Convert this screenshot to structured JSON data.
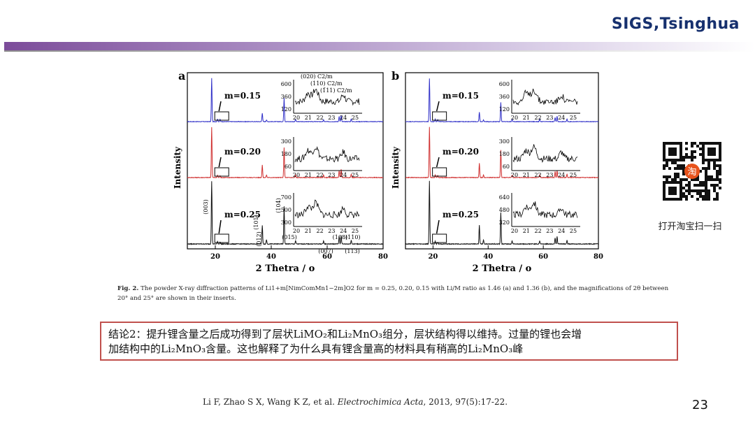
{
  "header": {
    "title": "SIGS,Tsinghua"
  },
  "colors": {
    "accent_purple": "#7c4c9a",
    "series_m015": "#3030c8",
    "series_m020": "#d03030",
    "series_m025": "#111111",
    "box_border": "#c0504d",
    "title_navy": "#16306e"
  },
  "chart_data": [
    {
      "panel": "a",
      "type": "line",
      "xlabel": "2 Thetra / o",
      "ylabel": "Intensity",
      "xlim": [
        10,
        80
      ],
      "xticks": [
        "20",
        "40",
        "60",
        "80"
      ],
      "x_units": "degrees 2θ",
      "grid": false,
      "series": [
        {
          "name": "m=0.15",
          "color": "#3030c8",
          "peaks": [
            [
              18.7,
              1.0
            ],
            [
              20.8,
              0.06
            ],
            [
              21.7,
              0.05
            ],
            [
              36.8,
              0.2
            ],
            [
              38.3,
              0.04
            ],
            [
              44.6,
              0.55
            ],
            [
              48.7,
              0.05
            ],
            [
              58.7,
              0.04
            ],
            [
              64.3,
              0.12
            ],
            [
              65.0,
              0.14
            ],
            [
              68.6,
              0.06
            ]
          ]
        },
        {
          "name": "m=0.20",
          "color": "#d03030",
          "peaks": [
            [
              18.7,
              1.0
            ],
            [
              20.8,
              0.05
            ],
            [
              21.7,
              0.04
            ],
            [
              36.8,
              0.25
            ],
            [
              38.3,
              0.05
            ],
            [
              44.6,
              0.6
            ],
            [
              48.7,
              0.05
            ],
            [
              58.7,
              0.05
            ],
            [
              64.3,
              0.14
            ],
            [
              65.0,
              0.16
            ],
            [
              68.6,
              0.07
            ]
          ]
        },
        {
          "name": "m=0.25",
          "color": "#111111",
          "peaks": [
            [
              18.7,
              1.0
            ],
            [
              20.8,
              0.04
            ],
            [
              21.7,
              0.03
            ],
            [
              36.8,
              0.3
            ],
            [
              38.3,
              0.07
            ],
            [
              44.6,
              0.6
            ],
            [
              48.7,
              0.05
            ],
            [
              58.7,
              0.05
            ],
            [
              64.3,
              0.12
            ],
            [
              65.0,
              0.14
            ],
            [
              68.6,
              0.06
            ]
          ]
        }
      ],
      "peak_labels": [
        "(003)",
        "(101)",
        "(012)",
        "(104)",
        "(015)",
        "(007)",
        "(108)",
        "(110)",
        "(113)"
      ],
      "insets": [
        {
          "for": "m=0.15",
          "xticks": [
            "20",
            "21",
            "22",
            "23",
            "24",
            "25"
          ],
          "yticks": [
            "120",
            "360",
            "600"
          ],
          "annotations": [
            "(020) C2/m",
            "(110) C2/m",
            "(1̄11) C2/m"
          ]
        },
        {
          "for": "m=0.20",
          "xticks": [
            "20",
            "21",
            "22",
            "23",
            "24",
            "25"
          ],
          "yticks": [
            "60",
            "180",
            "300"
          ]
        },
        {
          "for": "m=0.25",
          "xticks": [
            "20",
            "21",
            "22",
            "23",
            "24",
            "25"
          ],
          "yticks": [
            "300",
            "500",
            "700"
          ]
        }
      ]
    },
    {
      "panel": "b",
      "type": "line",
      "xlabel": "2 Thetra / o",
      "ylabel": "Intensity",
      "xlim": [
        10,
        80
      ],
      "xticks": [
        "20",
        "40",
        "60",
        "80"
      ],
      "x_units": "degrees 2θ",
      "grid": false,
      "series": [
        {
          "name": "m=0.15",
          "color": "#3030c8",
          "peaks": [
            [
              18.7,
              1.0
            ],
            [
              20.8,
              0.06
            ],
            [
              21.7,
              0.05
            ],
            [
              36.8,
              0.22
            ],
            [
              38.3,
              0.04
            ],
            [
              44.6,
              0.45
            ],
            [
              48.7,
              0.05
            ],
            [
              58.7,
              0.05
            ],
            [
              64.3,
              0.1
            ],
            [
              65.0,
              0.12
            ],
            [
              68.6,
              0.06
            ]
          ]
        },
        {
          "name": "m=0.20",
          "color": "#d03030",
          "peaks": [
            [
              18.7,
              1.0
            ],
            [
              20.8,
              0.05
            ],
            [
              21.7,
              0.04
            ],
            [
              36.8,
              0.28
            ],
            [
              38.3,
              0.05
            ],
            [
              44.6,
              0.55
            ],
            [
              48.7,
              0.05
            ],
            [
              58.7,
              0.05
            ],
            [
              64.3,
              0.12
            ],
            [
              65.0,
              0.14
            ],
            [
              68.6,
              0.07
            ]
          ]
        },
        {
          "name": "m=0.25",
          "color": "#111111",
          "peaks": [
            [
              18.7,
              1.0
            ],
            [
              20.8,
              0.04
            ],
            [
              21.7,
              0.03
            ],
            [
              36.8,
              0.3
            ],
            [
              38.3,
              0.06
            ],
            [
              44.6,
              0.5
            ],
            [
              48.7,
              0.05
            ],
            [
              58.7,
              0.05
            ],
            [
              64.3,
              0.1
            ],
            [
              65.0,
              0.12
            ],
            [
              68.6,
              0.06
            ]
          ]
        }
      ],
      "insets": [
        {
          "for": "m=0.15",
          "xticks": [
            "20",
            "21",
            "22",
            "23",
            "24",
            "25"
          ],
          "yticks": [
            "120",
            "360",
            "600"
          ]
        },
        {
          "for": "m=0.20",
          "xticks": [
            "20",
            "21",
            "22",
            "23",
            "24",
            "25"
          ],
          "yticks": [
            "60",
            "180",
            "300"
          ]
        },
        {
          "for": "m=0.25",
          "xticks": [
            "20",
            "21",
            "22",
            "23",
            "24",
            "25"
          ],
          "yticks": [
            "320",
            "480",
            "640"
          ]
        }
      ]
    }
  ],
  "caption": {
    "fig_label": "Fig. 2.",
    "text_line1": "The powder X-ray diffraction patterns of Li1+m[NimComMn1−2m]O2 for m = 0.25, 0.20, 0.15 with Li/M ratio as 1.46 (a) and 1.36 (b), and the magnifications of 2θ between",
    "text_line2": "20° and 25° are shown in their inserts."
  },
  "conclusion": {
    "line1": "结论2：提升锂含量之后成功得到了层状LiMO₂和Li₂MnO₃组分，层状结构得以维持。过量的锂也会增",
    "line2": "加结构中的Li₂MnO₃含量。这也解释了为什么具有锂含量高的材料具有稍高的Li₂MnO₃峰"
  },
  "qr_label": "打开淘宝扫一扫",
  "qr_center_text": "淘",
  "citation": {
    "authors": "Li F, Zhao S X, Wang K Z, et al. ",
    "journal": "Electrochimica Acta",
    "details": ", 2013, 97(5):17-22."
  },
  "page_number": "23"
}
